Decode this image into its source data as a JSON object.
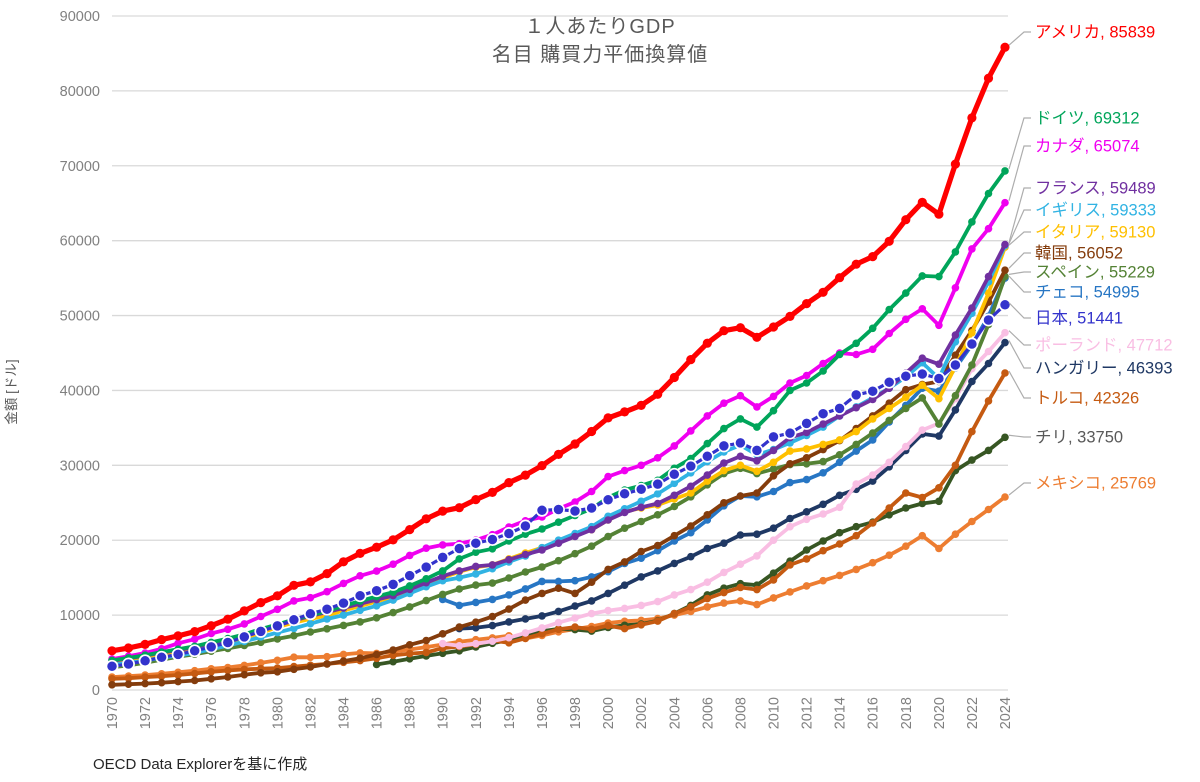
{
  "chart_data": {
    "type": "line",
    "title": "１人あたりGDP",
    "subtitle": "名目 購買力平価換算値",
    "ylabel": "金額 [ドル]",
    "source_note": "OECD Data Explorerを基に作成",
    "ylim": [
      0,
      90000
    ],
    "ytick_step": 10000,
    "x_tick_start": 1970,
    "x_tick_end": 2024,
    "x_tick_step": 2,
    "grid": "horizontal",
    "legend_position": "right-labels",
    "grid_color": "#D9D9D9",
    "axis_text_color": "#808080",
    "leader_line_color": "#ADADAD",
    "series": [
      {
        "key": "usa",
        "name": "アメリカ",
        "final": 85839,
        "label": "アメリカ, 85839",
        "color": "#FF0000",
        "label_color": "#FF0000",
        "start_year": 1970,
        "label_y": 32,
        "marker": "dot",
        "line_width": 5.2,
        "marker_r": 4.6,
        "values": [
          5234,
          5609,
          6094,
          6726,
          7226,
          7801,
          8592,
          9453,
          10565,
          11674,
          12575,
          13976,
          14434,
          15544,
          17121,
          18237,
          19071,
          20039,
          21417,
          22857,
          23889,
          24342,
          25419,
          26387,
          27695,
          28691,
          29968,
          31459,
          32854,
          34515,
          36330,
          37134,
          37998,
          39490,
          41725,
          44123,
          46302,
          47976,
          48383,
          47100,
          48467,
          49883,
          51603,
          53107,
          55050,
          56863,
          57867,
          59915,
          62805,
          65120,
          63528,
          70219,
          76399,
          81695,
          85839
        ]
      },
      {
        "key": "germany",
        "name": "ドイツ",
        "final": 69312,
        "label": "ドイツ, 69312",
        "color": "#00A55A",
        "label_color": "#00A55A",
        "start_year": 1970,
        "label_y": 118,
        "marker": "dot",
        "line_width": 3.8,
        "marker_r": 3.8,
        "values": [
          3950,
          4290,
          4650,
          5060,
          5450,
          5830,
          6360,
          6860,
          7440,
          8130,
          8750,
          9440,
          9980,
          10560,
          11220,
          11870,
          12500,
          13060,
          13900,
          14850,
          15900,
          17500,
          18400,
          18850,
          19900,
          20800,
          21500,
          22400,
          23300,
          24200,
          25700,
          26700,
          27300,
          28000,
          29600,
          30900,
          32900,
          34900,
          36200,
          35100,
          37300,
          40000,
          41000,
          42600,
          44800,
          46300,
          48300,
          50800,
          53000,
          55300,
          55200,
          58500,
          62500,
          66300,
          69312
        ]
      },
      {
        "key": "canada",
        "name": "カナダ",
        "final": 65074,
        "label": "カナダ, 65074",
        "color": "#F000F0",
        "label_color": "#F000F0",
        "start_year": 1970,
        "label_y": 146,
        "marker": "dot",
        "line_width": 3.8,
        "marker_r": 3.8,
        "values": [
          4120,
          4510,
          4940,
          5500,
          6230,
          6780,
          7540,
          8110,
          8830,
          9810,
          10780,
          11900,
          12320,
          13120,
          14240,
          15250,
          15880,
          16800,
          17970,
          18930,
          19370,
          19540,
          20030,
          20740,
          21750,
          22600,
          23100,
          24200,
          25100,
          26500,
          28500,
          29300,
          30000,
          31000,
          32600,
          34600,
          36600,
          38300,
          39300,
          37800,
          39200,
          41000,
          42000,
          43600,
          45000,
          44800,
          45500,
          47600,
          49500,
          50900,
          48700,
          53700,
          58900,
          61600,
          65074
        ]
      },
      {
        "key": "france",
        "name": "フランス",
        "final": 59489,
        "label": "フランス, 59489",
        "color": "#7030A0",
        "label_color": "#7030A0",
        "start_year": 1970,
        "label_y": 188,
        "marker": "dot",
        "line_width": 3.8,
        "marker_r": 3.8,
        "values": [
          3880,
          4220,
          4590,
          4990,
          5340,
          5710,
          6240,
          6730,
          7300,
          7980,
          8620,
          9280,
          9890,
          10400,
          10960,
          11510,
          12070,
          12600,
          13440,
          14330,
          15200,
          15900,
          16500,
          16700,
          17400,
          18100,
          18700,
          19600,
          20500,
          21400,
          22700,
          23700,
          24400,
          24900,
          26000,
          27200,
          28700,
          30300,
          31200,
          30600,
          32000,
          33700,
          34400,
          35500,
          36600,
          37700,
          38800,
          40300,
          42300,
          44300,
          43500,
          47400,
          51000,
          55200,
          59489
        ]
      },
      {
        "key": "uk",
        "name": "イギリス",
        "final": 59333,
        "label": "イギリス, 59333",
        "color": "#31B3E3",
        "label_color": "#31B3E3",
        "start_year": 1970,
        "label_y": 210,
        "marker": "dot",
        "line_width": 3.8,
        "marker_r": 3.8,
        "values": [
          3350,
          3640,
          3920,
          4330,
          4600,
          4960,
          5440,
          5910,
          6480,
          7080,
          7660,
          8220,
          8850,
          9480,
          10000,
          10640,
          11240,
          12000,
          12900,
          13800,
          14600,
          15000,
          15500,
          16200,
          17100,
          17900,
          19000,
          20000,
          20900,
          21800,
          23200,
          24200,
          25200,
          26200,
          27600,
          29000,
          30500,
          31800,
          32700,
          31400,
          32100,
          33000,
          34000,
          35100,
          36600,
          37800,
          39000,
          40300,
          41800,
          43700,
          41600,
          46500,
          50300,
          54500,
          59333
        ]
      },
      {
        "key": "italy",
        "name": "イタリア",
        "final": 59130,
        "label": "イタリア, 59130",
        "color": "#FFC000",
        "label_color": "#FFC000",
        "start_year": 1970,
        "label_y": 232,
        "marker": "dot",
        "line_width": 3.8,
        "marker_r": 3.8,
        "values": [
          3680,
          3940,
          4250,
          4690,
          5110,
          5380,
          5930,
          6400,
          6940,
          7630,
          8380,
          9000,
          9500,
          9950,
          10600,
          11200,
          11800,
          12450,
          13300,
          14200,
          15000,
          15800,
          16400,
          16700,
          17500,
          18300,
          19000,
          19800,
          20700,
          21400,
          22700,
          23800,
          24300,
          24700,
          25500,
          26300,
          27900,
          29300,
          30000,
          29200,
          30400,
          31900,
          32200,
          32800,
          33400,
          34500,
          36200,
          37600,
          39100,
          40700,
          38900,
          43200,
          47700,
          53000,
          59130
        ]
      },
      {
        "key": "korea",
        "name": "韓国",
        "final": 56052,
        "label": "韓国, 56052",
        "color": "#843C0C",
        "label_color": "#843C0C",
        "start_year": 1970,
        "label_y": 253,
        "marker": "dot",
        "line_width": 3.8,
        "marker_r": 3.8,
        "values": [
          690,
          770,
          850,
          970,
          1120,
          1270,
          1490,
          1730,
          2040,
          2300,
          2430,
          2760,
          3070,
          3470,
          3860,
          4240,
          4740,
          5330,
          6030,
          6610,
          7500,
          8400,
          9050,
          9800,
          10800,
          12000,
          12900,
          13600,
          12900,
          14400,
          16100,
          17100,
          18500,
          19300,
          20600,
          21900,
          23400,
          25000,
          25900,
          26300,
          28600,
          30200,
          31000,
          32100,
          33300,
          34900,
          36600,
          38300,
          40100,
          40800,
          41200,
          44700,
          48000,
          51800,
          56052
        ]
      },
      {
        "key": "spain",
        "name": "スペイン",
        "final": 55229,
        "label": "スペイン, 55229",
        "color": "#548235",
        "label_color": "#548235",
        "start_year": 1970,
        "label_y": 272,
        "marker": "dot",
        "line_width": 3.8,
        "marker_r": 3.8,
        "values": [
          3040,
          3280,
          3640,
          4040,
          4450,
          4780,
          5180,
          5560,
          5960,
          6370,
          6830,
          7250,
          7750,
          8170,
          8620,
          9090,
          9640,
          10340,
          11090,
          11940,
          12760,
          13490,
          14010,
          14280,
          14960,
          15760,
          16430,
          17270,
          18200,
          19200,
          20500,
          21600,
          22500,
          23400,
          24500,
          25800,
          27400,
          28900,
          29600,
          28900,
          29500,
          30100,
          30200,
          30500,
          31400,
          32800,
          34300,
          36000,
          37600,
          39000,
          35500,
          39300,
          43400,
          48800,
          55229
        ]
      },
      {
        "key": "czechia",
        "name": "チェコ",
        "final": 54995,
        "label": "チェコ, 54995",
        "color": "#2776C4",
        "label_color": "#2776C4",
        "start_year": 1990,
        "label_y": 292,
        "marker": "dot",
        "line_width": 3.8,
        "marker_r": 3.8,
        "values": [
          12100,
          11300,
          11700,
          12100,
          12700,
          13500,
          14500,
          14500,
          14600,
          15100,
          15800,
          16900,
          17600,
          18600,
          19900,
          21000,
          22700,
          24600,
          25900,
          25800,
          26500,
          27700,
          28100,
          29000,
          30400,
          31900,
          33400,
          35800,
          38000,
          40300,
          39900,
          43000,
          46100,
          49900,
          54995
        ]
      },
      {
        "key": "japan",
        "name": "日本",
        "final": 51441,
        "label": "日本, 51441",
        "color": "#3333CC",
        "label_color": "#3333CC",
        "start_year": 1970,
        "label_y": 318,
        "marker": "ring",
        "line_width": 3.2,
        "marker_r": 5.6,
        "values": [
          3170,
          3470,
          3900,
          4370,
          4750,
          5230,
          5750,
          6340,
          7090,
          7820,
          8560,
          9380,
          10170,
          10790,
          11600,
          12590,
          13260,
          14100,
          15280,
          16410,
          17700,
          18900,
          19600,
          20100,
          20900,
          21900,
          24000,
          24100,
          23900,
          24300,
          25400,
          26200,
          26800,
          27500,
          28800,
          29900,
          31200,
          32600,
          33000,
          32000,
          33800,
          34300,
          35600,
          36900,
          37600,
          39400,
          39900,
          41100,
          41900,
          42200,
          41600,
          43400,
          46200,
          49400,
          51441
        ]
      },
      {
        "key": "poland",
        "name": "ポーランド",
        "final": 47712,
        "label": "ポーランド, 47712",
        "color": "#F9BEE3",
        "label_color": "#F9BEE3",
        "start_year": 1990,
        "label_y": 345,
        "marker": "dot",
        "line_width": 3.8,
        "marker_r": 3.8,
        "values": [
          6190,
          5900,
          6180,
          6520,
          6980,
          7630,
          8290,
          9000,
          9600,
          10200,
          10600,
          10900,
          11300,
          11800,
          12700,
          13400,
          14400,
          15700,
          16800,
          17900,
          20000,
          21800,
          22800,
          23500,
          24400,
          27500,
          28700,
          30400,
          32500,
          34700,
          35600,
          38900,
          42900,
          45200,
          47712
        ]
      },
      {
        "key": "hungary",
        "name": "ハンガリー",
        "final": 46393,
        "label": "ハンガリー, 46393",
        "color": "#1F3864",
        "label_color": "#1F3864",
        "start_year": 1991,
        "label_y": 368,
        "marker": "dot",
        "line_width": 3.8,
        "marker_r": 3.8,
        "values": [
          8200,
          8300,
          8600,
          9100,
          9500,
          9900,
          10500,
          11200,
          11900,
          12900,
          14000,
          15100,
          15900,
          16900,
          17800,
          18900,
          19600,
          20700,
          20800,
          21600,
          22900,
          23800,
          24800,
          26000,
          26800,
          27900,
          29800,
          32000,
          34200,
          33900,
          37400,
          41200,
          43600,
          46393
        ]
      },
      {
        "key": "turkiye",
        "name": "トルコ",
        "final": 42326,
        "label": "トルコ, 42326",
        "color": "#C55A11",
        "label_color": "#C55A11",
        "start_year": 1970,
        "label_y": 398,
        "marker": "dot",
        "line_width": 3.8,
        "marker_r": 3.8,
        "values": [
          1490,
          1580,
          1720,
          1840,
          2000,
          2200,
          2430,
          2610,
          2750,
          2850,
          2920,
          3120,
          3300,
          3480,
          3700,
          3920,
          4230,
          4640,
          4860,
          5010,
          5590,
          5800,
          6100,
          6600,
          6300,
          6900,
          7500,
          8100,
          8400,
          8100,
          8600,
          8200,
          8700,
          9200,
          10200,
          11100,
          12200,
          13000,
          13700,
          13400,
          14700,
          16700,
          17500,
          18600,
          19500,
          20600,
          22300,
          24300,
          26300,
          25700,
          27000,
          30000,
          34500,
          38600,
          42326
        ]
      },
      {
        "key": "chile",
        "name": "チリ",
        "final": 33750,
        "label": "チリ, 33750",
        "color": "#375623",
        "label_color": "#595959",
        "start_year": 1986,
        "label_y": 437,
        "marker": "dot",
        "line_width": 3.8,
        "marker_r": 3.8,
        "values": [
          3400,
          3780,
          4160,
          4560,
          4900,
          5230,
          5750,
          6230,
          6660,
          7400,
          7850,
          8160,
          8060,
          7870,
          8350,
          8640,
          8800,
          9250,
          10200,
          11300,
          12700,
          13600,
          14200,
          14000,
          15600,
          17200,
          18700,
          19900,
          21000,
          21800,
          22400,
          23400,
          24300,
          24900,
          25200,
          29300,
          30700,
          32000,
          33750
        ]
      },
      {
        "key": "mexico",
        "name": "メキシコ",
        "final": 25769,
        "label": "メキシコ, 25769",
        "color": "#ED7D31",
        "label_color": "#ED7D31",
        "start_year": 1970,
        "label_y": 483,
        "marker": "dot",
        "line_width": 3.8,
        "marker_r": 3.8,
        "values": [
          1720,
          1850,
          1990,
          2160,
          2360,
          2580,
          2830,
          3000,
          3280,
          3620,
          3970,
          4380,
          4370,
          4440,
          4750,
          4960,
          4890,
          5130,
          5410,
          5730,
          6080,
          6440,
          6710,
          6960,
          7240,
          6880,
          7290,
          7770,
          8130,
          8480,
          8950,
          9170,
          9300,
          9540,
          10000,
          10500,
          11100,
          11600,
          11900,
          11400,
          12300,
          13100,
          13900,
          14600,
          15300,
          16100,
          17000,
          18000,
          19200,
          20600,
          18900,
          20800,
          22500,
          24100,
          25769
        ]
      }
    ]
  }
}
